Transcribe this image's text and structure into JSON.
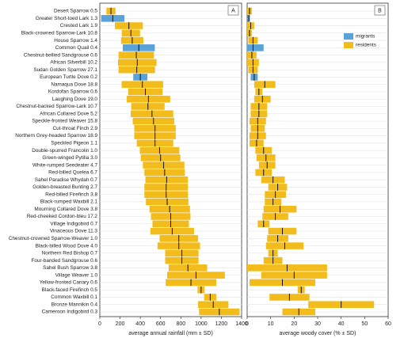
{
  "chart_data": [
    {
      "type": "range",
      "panel_label": "A",
      "xlabel": "average annual rainfall (mm ± SD)",
      "categories": [
        "Desert Sparrow 0.5",
        "Greater Short-toed Lark 1.3",
        "Crested Lark 1.9",
        "Black-crowned Sparrow-Lark 10.8",
        "House Sparrow 1.4",
        "Common Quail 0.4",
        "Chestnut-bellied Sandgrouse 0.6",
        "African Silverbill 10.2",
        "Sudan Golden Sparrow 27.1",
        "European Turtle Dove 0.2",
        "Namaqua Dove 18.8",
        "Kordofan Sparrow 0.6",
        "Laughing Dove 19.0",
        "Chestnut-backed Sparrow-Lark 10.7",
        "African Collared Dove 5.2",
        "Speckle-fronted Weaver 15.8",
        "Cut-throat Finch 2.9",
        "Northern Grey-headed Sparrow 18.9",
        "Speckled Pigeon 1.1",
        "Double-spurred Francolin 1.0",
        "Green-winged Pytilia 3.0",
        "White-rumped Seedeater 4.7",
        "Red-billed Quelea 6.7",
        "Sahel Paradise Whydah 0.7",
        "Golden-breasted Bunting 2.7",
        "Red-billed Firefinch 3.8",
        "Black-rumped Waxbill 2.1",
        "Mourning Collared Dove 3.8",
        "Red-cheeked Cordon-bleu 17.2",
        "Village Indigobird 0.7",
        "Vinaceous Dove 11.3",
        "Chestnut-crowned Sparrow-Weaver 1.0",
        "Black-billed Wood Dove 4.0",
        "Northern Red Bishop 0.7",
        "Four-banded Sandgrouse 0.6",
        "Sahel Bush Sparrow 3.8",
        "Village Weaver 1.0",
        "Yellow-fronted Canary 0.6",
        "Black-faced Firefinch 0.5",
        "Common Waxbill 0.1",
        "Bronze Mannikin 0.4",
        "Cameroon Indigobird 0.3"
      ],
      "values": [
        110,
        128,
        287,
        307,
        320,
        385,
        360,
        370,
        365,
        400,
        420,
        450,
        480,
        475,
        515,
        530,
        545,
        545,
        545,
        590,
        600,
        630,
        640,
        660,
        655,
        655,
        665,
        690,
        700,
        700,
        715,
        780,
        780,
        810,
        810,
        870,
        950,
        900,
        1000,
        1090,
        1120,
        1180
      ],
      "sd": [
        45,
        115,
        138,
        90,
        110,
        158,
        175,
        190,
        180,
        70,
        205,
        170,
        215,
        165,
        210,
        205,
        205,
        205,
        180,
        195,
        195,
        205,
        200,
        210,
        215,
        215,
        210,
        200,
        195,
        180,
        215,
        190,
        210,
        165,
        165,
        190,
        285,
        250,
        35,
        60,
        150,
        200
      ],
      "colors": [
        "#f2bd1c",
        "#5aa3d8",
        "#f2bd1c",
        "#f2bd1c",
        "#f2bd1c",
        "#5aa3d8",
        "#f2bd1c",
        "#f2bd1c",
        "#f2bd1c",
        "#5aa3d8",
        "#f2bd1c",
        "#f2bd1c",
        "#f2bd1c",
        "#f2bd1c",
        "#f2bd1c",
        "#f2bd1c",
        "#f2bd1c",
        "#f2bd1c",
        "#f2bd1c",
        "#f2bd1c",
        "#f2bd1c",
        "#f2bd1c",
        "#f2bd1c",
        "#f2bd1c",
        "#f2bd1c",
        "#f2bd1c",
        "#f2bd1c",
        "#f2bd1c",
        "#f2bd1c",
        "#f2bd1c",
        "#f2bd1c",
        "#f2bd1c",
        "#f2bd1c",
        "#f2bd1c",
        "#f2bd1c",
        "#f2bd1c",
        "#f2bd1c",
        "#f2bd1c",
        "#f2bd1c",
        "#f2bd1c",
        "#f2bd1c",
        "#f2bd1c"
      ],
      "xlim": [
        0,
        1400
      ],
      "xticks": [
        0,
        200,
        400,
        600,
        800,
        1000,
        1200,
        1400
      ],
      "grid": true
    },
    {
      "type": "range",
      "panel_label": "B",
      "xlabel": "average woody cover (% ± SD)",
      "values": [
        1,
        0.7,
        1.5,
        1,
        2.5,
        2.5,
        2,
        2.5,
        2.5,
        3,
        7.5,
        5,
        6.5,
        5,
        5,
        4.5,
        4.5,
        4.5,
        4,
        7,
        8,
        8.5,
        7,
        11,
        13,
        12,
        11,
        14,
        12,
        7,
        15,
        13,
        16,
        11,
        11,
        17,
        20,
        15,
        23,
        18,
        40,
        22
      ],
      "sd": [
        1,
        0.5,
        1.5,
        1,
        2,
        4.5,
        2,
        2.5,
        2,
        1.5,
        4.5,
        1.5,
        3.5,
        3.5,
        3.5,
        3.5,
        3,
        3.5,
        3,
        3.5,
        4,
        3.5,
        3.5,
        5,
        4,
        4.5,
        3.5,
        7,
        5.5,
        2.5,
        6,
        4.5,
        8,
        2,
        4,
        17,
        14,
        14,
        1.5,
        8.5,
        14,
        7
      ],
      "colors": [
        "#f2bd1c",
        "#5aa3d8",
        "#f2bd1c",
        "#f2bd1c",
        "#f2bd1c",
        "#5aa3d8",
        "#f2bd1c",
        "#f2bd1c",
        "#f2bd1c",
        "#5aa3d8",
        "#f2bd1c",
        "#f2bd1c",
        "#f2bd1c",
        "#f2bd1c",
        "#f2bd1c",
        "#f2bd1c",
        "#f2bd1c",
        "#f2bd1c",
        "#f2bd1c",
        "#f2bd1c",
        "#f2bd1c",
        "#f2bd1c",
        "#f2bd1c",
        "#f2bd1c",
        "#f2bd1c",
        "#f2bd1c",
        "#f2bd1c",
        "#f2bd1c",
        "#f2bd1c",
        "#f2bd1c",
        "#f2bd1c",
        "#f2bd1c",
        "#f2bd1c",
        "#f2bd1c",
        "#f2bd1c",
        "#f2bd1c",
        "#f2bd1c",
        "#f2bd1c",
        "#f2bd1c",
        "#f2bd1c",
        "#f2bd1c",
        "#f2bd1c"
      ],
      "xlim": [
        0,
        60
      ],
      "xticks": [
        0,
        10,
        20,
        30,
        40,
        50,
        60
      ],
      "grid": true,
      "legend": [
        {
          "name": "migrants",
          "color": "#5aa3d8"
        },
        {
          "name": "residents",
          "color": "#f2bd1c"
        }
      ],
      "legend_position": "upper right"
    }
  ]
}
